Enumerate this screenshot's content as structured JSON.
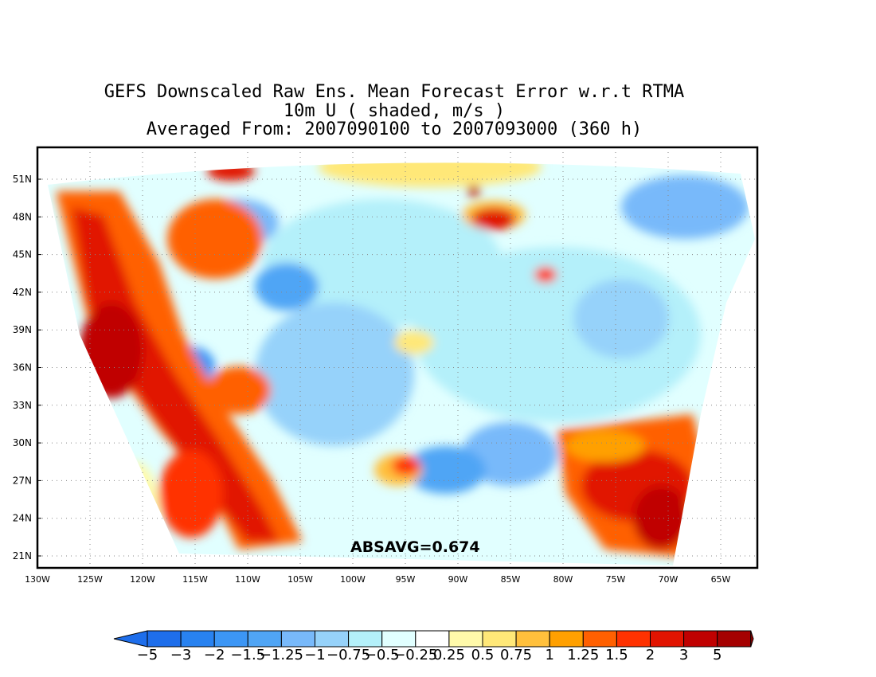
{
  "titles": {
    "line1": "GEFS Downscaled Raw Ens. Mean Forecast Error w.r.t RTMA",
    "line2": "10m U ( shaded, m/s )",
    "line3": "Averaged From: 2007090100 to 2007093000 (360 h)"
  },
  "annotation": "ABSAVG=0.674",
  "axes": {
    "lon_labels": [
      "130W",
      "125W",
      "120W",
      "115W",
      "110W",
      "105W",
      "100W",
      "95W",
      "90W",
      "85W",
      "80W",
      "75W",
      "70W",
      "65W"
    ],
    "lat_labels": [
      "51N",
      "48N",
      "45N",
      "42N",
      "39N",
      "36N",
      "33N",
      "30N",
      "27N",
      "24N",
      "21N"
    ],
    "grid": "dotted"
  },
  "colorbar": {
    "labels": [
      "-5",
      "-3",
      "-2",
      "-1.5",
      "-1.25",
      "-1",
      "-0.75",
      "-0.5",
      "-0.25",
      "0.25",
      "0.5",
      "0.75",
      "1",
      "1.25",
      "1.5",
      "2",
      "3",
      "5"
    ],
    "colors": [
      "#1e6eeb",
      "#2882f0",
      "#3c96f5",
      "#50a5f5",
      "#78b9fa",
      "#96d2fa",
      "#b4f0fa",
      "#e1ffff",
      "#ffffff",
      "#fffaaa",
      "#ffe878",
      "#ffc03c",
      "#ffa000",
      "#ff6000",
      "#ff3200",
      "#e11400",
      "#c00000",
      "#a50000"
    ]
  }
}
